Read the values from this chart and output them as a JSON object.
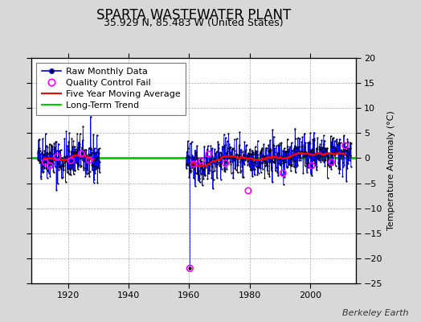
{
  "title": "SPARTA WASTEWATER PLANT",
  "subtitle": "35.929 N, 85.483 W (United States)",
  "ylabel": "Temperature Anomaly (°C)",
  "credit": "Berkeley Earth",
  "background_color": "#d8d8d8",
  "plot_bg_color": "#ffffff",
  "ylim": [
    -25,
    20
  ],
  "yticks": [
    -25,
    -20,
    -15,
    -10,
    -5,
    0,
    5,
    10,
    15,
    20
  ],
  "xlim": [
    1908,
    2015
  ],
  "xticks": [
    1920,
    1940,
    1960,
    1980,
    2000
  ],
  "seed": 42,
  "segment1_start": 1910.0,
  "segment1_end": 1930.5,
  "segment2_start": 1959.0,
  "segment2_end": 2013.5,
  "outlier_year": 1960.25,
  "outlier_value": -22.0,
  "raw_color": "#0000ff",
  "ma_color": "#ff0000",
  "trend_color": "#00cc00",
  "qc_color": "#ff00ff",
  "dot_color": "#000000",
  "title_fontsize": 12,
  "subtitle_fontsize": 9,
  "label_fontsize": 8,
  "tick_fontsize": 8,
  "legend_fontsize": 8
}
